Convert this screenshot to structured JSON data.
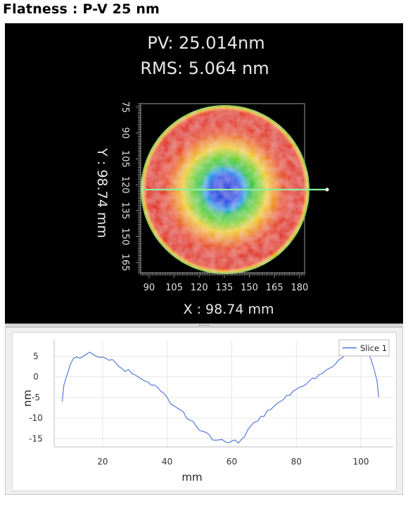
{
  "page": {
    "title": "Flatness : P-V 25 nm"
  },
  "colors": {
    "map_background": "#000000",
    "map_text": "#e8e8e8",
    "slice_line": "#4a6fe0",
    "surface_high": "#e02a1a",
    "surface_mid": "#f0c020",
    "surface_mid2": "#7ed321",
    "surface_low": "#1030d8",
    "slice_marker": "#8cf0a0"
  },
  "stats": {
    "pv": "PV: 25.014nm",
    "rms": "RMS: 5.064  nm"
  },
  "chart_data": [
    {
      "type": "heatmap",
      "title": "",
      "xlabel": "X : 98.74 mm",
      "ylabel": "Y : 98.74 mm",
      "x_ticks": [
        "90",
        "105",
        "120",
        "135",
        "150",
        "165",
        "180"
      ],
      "y_ticks": [
        "75",
        "90",
        "105",
        "120",
        "135",
        "150",
        "165"
      ],
      "x_range": [
        85,
        183
      ],
      "y_range": [
        73,
        171
      ],
      "grid": false,
      "colormap": [
        "#1030d8",
        "#1aa8e8",
        "#2ec84a",
        "#7ed321",
        "#f0c020",
        "#f07818",
        "#e02a1a"
      ]
    },
    {
      "type": "line",
      "title": "",
      "xlabel": "mm",
      "ylabel": "nm",
      "xlim": [
        5,
        110
      ],
      "ylim": [
        -17,
        9
      ],
      "x_ticks": [
        "20",
        "40",
        "60",
        "80",
        "100"
      ],
      "y_ticks": [
        "5",
        "0",
        "-5",
        "-10",
        "-15"
      ],
      "grid": true,
      "legend_position": "top-right",
      "series": [
        {
          "name": "Slice 1",
          "x": [
            7.5,
            8,
            9,
            10,
            11,
            12,
            13,
            14,
            15,
            16,
            17,
            18,
            19,
            20,
            21,
            22,
            23,
            24,
            25,
            26,
            27,
            28,
            29,
            30,
            31,
            32,
            33,
            34,
            35,
            36,
            37,
            38,
            39,
            40,
            41,
            42,
            43,
            44,
            45,
            46,
            47,
            48,
            49,
            50,
            51,
            52,
            53,
            54,
            55,
            56,
            57,
            58,
            59,
            60,
            61,
            62,
            63,
            64,
            65,
            66,
            67,
            68,
            69,
            70,
            71,
            72,
            73,
            74,
            75,
            76,
            77,
            78,
            79,
            80,
            81,
            82,
            83,
            84,
            85,
            86,
            87,
            88,
            89,
            90,
            91,
            92,
            93,
            94,
            95,
            96,
            97,
            98,
            99,
            100,
            101,
            102,
            103,
            104,
            105,
            105.5
          ],
          "y": [
            -6,
            -2,
            0.5,
            3,
            4.5,
            4.8,
            4.5,
            5,
            5.5,
            6,
            5.5,
            5,
            4.7,
            4.8,
            4.5,
            4,
            4.2,
            3.5,
            2.5,
            2,
            1.3,
            1.8,
            0.8,
            0.5,
            0,
            -0.5,
            -1,
            -1.2,
            -2,
            -2,
            -2.5,
            -3.5,
            -4,
            -5,
            -6.5,
            -7,
            -7.5,
            -8,
            -8.5,
            -10,
            -10.5,
            -10.8,
            -12,
            -13,
            -13.2,
            -13.5,
            -14,
            -15.3,
            -15.4,
            -15.3,
            -15.2,
            -15.8,
            -16,
            -15.6,
            -15.3,
            -16.1,
            -15.2,
            -14.5,
            -12.8,
            -11.8,
            -11,
            -10.8,
            -9.6,
            -9.6,
            -8.2,
            -8,
            -7.2,
            -6.5,
            -6,
            -5.5,
            -4.5,
            -4.5,
            -3.5,
            -3,
            -2.5,
            -2.3,
            -1.8,
            -1,
            -0.3,
            -0.4,
            0.5,
            0.8,
            1.5,
            2,
            2.3,
            3,
            4,
            4.5,
            5.2,
            5.7,
            5.5,
            6.1,
            6.8,
            6.5,
            7,
            6,
            4.5,
            2,
            -1,
            -5
          ]
        }
      ]
    }
  ]
}
